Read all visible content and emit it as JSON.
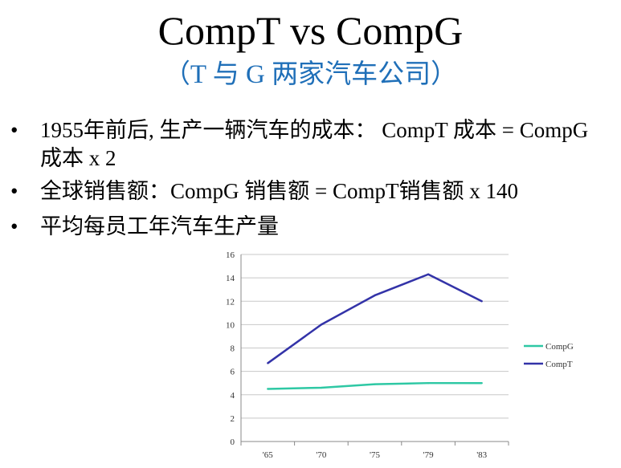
{
  "slide": {
    "title": "CompT vs CompG",
    "subtitle": "（T 与 G 两家汽车公司）",
    "bullets": [
      {
        "bullet": "•",
        "text": " 1955年前后, 生产一辆汽车的成本：     CompT 成本 = CompG 成本 x 2"
      },
      {
        "bullet": "•",
        "text": "全球销售额：CompG 销售额 =   CompT销售额 x 140"
      },
      {
        "bullet": "•",
        "text": "平均每员工年汽车生产量"
      }
    ]
  },
  "chart_data": {
    "type": "line",
    "categories": [
      "'65",
      "'70",
      "'75",
      "'79",
      "'83"
    ],
    "series": [
      {
        "name": "CompG",
        "values": [
          4.5,
          4.6,
          4.9,
          5.0,
          5.0
        ],
        "color": "#2ec8a4"
      },
      {
        "name": "CompT",
        "values": [
          6.7,
          10.0,
          12.5,
          14.3,
          12.0
        ],
        "color": "#3333a8"
      }
    ],
    "ylim": [
      0,
      16
    ],
    "yticks": [
      "0",
      "2",
      "4",
      "6",
      "8",
      "10",
      "12",
      "14",
      "16"
    ],
    "grid": true,
    "legend": "right",
    "xlabel": "",
    "ylabel": "",
    "title": ""
  }
}
